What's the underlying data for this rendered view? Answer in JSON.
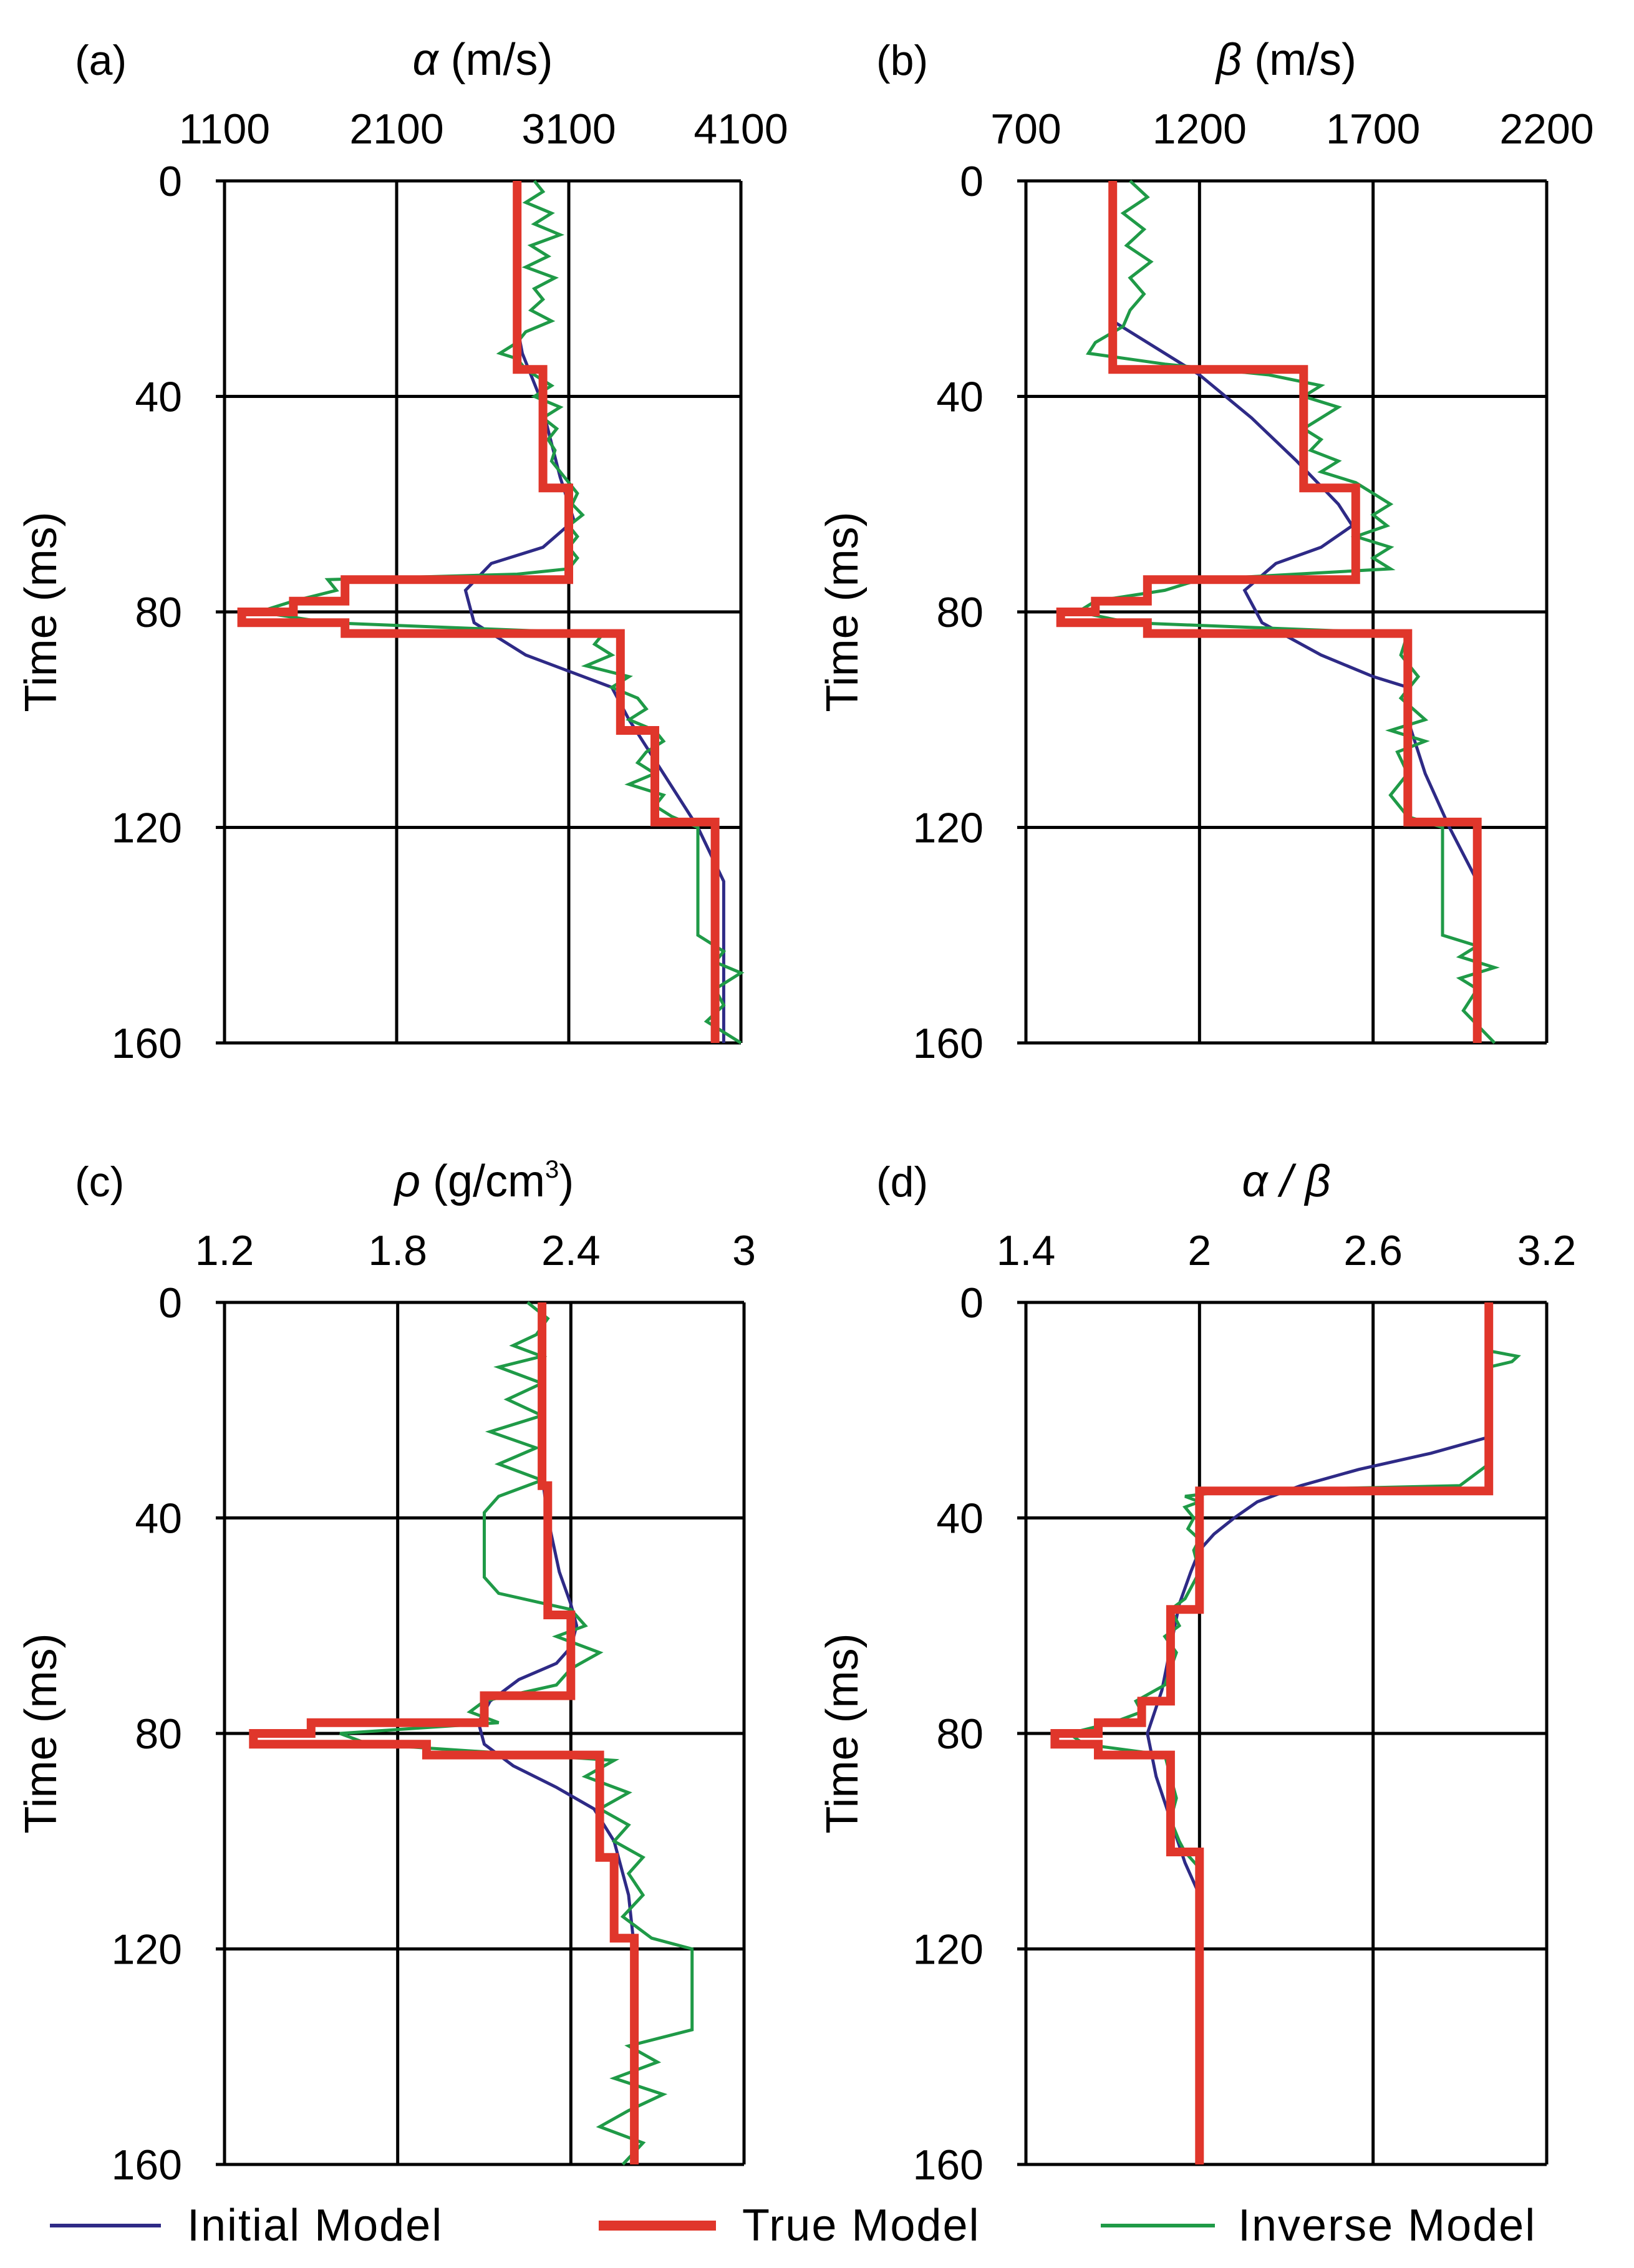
{
  "figure": {
    "legend": {
      "initial": "Initial Model",
      "true": "True Model",
      "inverse": "Inverse Model"
    },
    "colors": {
      "initial": "#2e2a86",
      "true": "#e0362b",
      "inverse": "#1f9a47",
      "axis": "#000000"
    }
  },
  "chart_data": [
    {
      "id": "a",
      "type": "line",
      "panel_label": "(a)",
      "title_symbol": "α",
      "title_rest": " (m/s)",
      "ylabel": "Time (ms)",
      "xlim": [
        1100,
        4100
      ],
      "xticks": [
        1100,
        2100,
        3100,
        4100
      ],
      "xtick_labels": [
        "1100",
        "2100",
        "3100",
        "4100"
      ],
      "ylim": [
        0,
        160
      ],
      "yticks": [
        0,
        40,
        80,
        120,
        160
      ],
      "ytick_labels": [
        "0",
        "40",
        "80",
        "120",
        "160"
      ],
      "series": [
        {
          "name": "Initial Model",
          "key": "initial",
          "t": [
            0,
            27,
            32,
            40,
            55,
            63,
            68,
            71,
            76,
            82,
            88,
            94,
            100,
            110,
            120,
            130,
            160
          ],
          "v": [
            2800,
            2800,
            2830,
            2930,
            3050,
            3130,
            2950,
            2650,
            2500,
            2550,
            2850,
            3350,
            3450,
            3650,
            3850,
            4000,
            4000
          ]
        },
        {
          "name": "True Model",
          "key": "true",
          "t": [
            0,
            35,
            35,
            57,
            57,
            74,
            74,
            78,
            78,
            80,
            80,
            82,
            82,
            84,
            84,
            102,
            102,
            119,
            119,
            160
          ],
          "v": [
            2800,
            2800,
            2950,
            2950,
            3100,
            3100,
            1800,
            1800,
            1500,
            1500,
            1200,
            1200,
            1800,
            1800,
            3400,
            3400,
            3600,
            3600,
            3950,
            3950
          ]
        },
        {
          "name": "Inverse Model",
          "key": "inverse",
          "t": [
            0,
            2,
            4,
            6,
            8,
            10,
            12,
            14,
            16,
            18,
            20,
            22,
            24,
            26,
            28,
            30,
            31,
            32,
            33,
            35,
            38,
            40,
            42,
            44,
            46,
            48,
            50,
            52,
            54,
            56,
            58,
            60,
            62,
            64,
            66,
            68,
            70,
            72,
            73,
            74,
            76,
            78,
            80,
            82,
            84,
            86,
            88,
            90,
            92,
            94,
            96,
            98,
            100,
            102,
            104,
            106,
            108,
            110,
            112,
            114,
            116,
            118,
            120,
            130,
            140,
            143,
            145,
            147,
            150,
            153,
            156,
            158,
            160
          ],
          "v": [
            2900,
            2950,
            2850,
            3000,
            2900,
            3050,
            2880,
            2980,
            2850,
            3020,
            2900,
            2950,
            2880,
            3000,
            2850,
            2800,
            2750,
            2700,
            2800,
            2850,
            3000,
            2900,
            3050,
            2950,
            3030,
            2980,
            3020,
            3000,
            3050,
            3100,
            3150,
            3120,
            3180,
            3100,
            3150,
            3100,
            3150,
            3100,
            2800,
            1700,
            1750,
            1500,
            1300,
            1700,
            3300,
            3250,
            3350,
            3200,
            3450,
            3350,
            3500,
            3550,
            3450,
            3600,
            3650,
            3550,
            3500,
            3600,
            3450,
            3650,
            3600,
            3700,
            3850,
            3850,
            3850,
            4000,
            3950,
            4100,
            3950,
            4000,
            3900,
            4000,
            4100
          ]
        }
      ]
    },
    {
      "id": "b",
      "type": "line",
      "panel_label": "(b)",
      "title_symbol": "β",
      "title_rest": " (m/s)",
      "ylabel": "Time (ms)",
      "xlim": [
        700,
        2200
      ],
      "xticks": [
        700,
        1200,
        1700,
        2200
      ],
      "xtick_labels": [
        "700",
        "1200",
        "1700",
        "2200"
      ],
      "ylim": [
        0,
        160
      ],
      "yticks": [
        0,
        40,
        80,
        120,
        160
      ],
      "ytick_labels": [
        "0",
        "40",
        "80",
        "120",
        "160"
      ],
      "series": [
        {
          "name": "Initial Model",
          "key": "initial",
          "t": [
            0,
            26,
            30,
            36,
            44,
            52,
            60,
            64,
            68,
            71,
            76,
            82,
            88,
            92,
            94,
            100,
            110,
            120,
            130,
            160
          ],
          "v": [
            950,
            950,
            1050,
            1200,
            1350,
            1480,
            1600,
            1640,
            1550,
            1420,
            1330,
            1380,
            1550,
            1700,
            1800,
            1800,
            1850,
            1920,
            2000,
            2000
          ]
        },
        {
          "name": "True Model",
          "key": "true",
          "t": [
            0,
            35,
            35,
            57,
            57,
            74,
            74,
            78,
            78,
            80,
            80,
            82,
            82,
            84,
            84,
            119,
            119,
            160
          ],
          "v": [
            950,
            950,
            1500,
            1500,
            1650,
            1650,
            1050,
            1050,
            900,
            900,
            800,
            800,
            1050,
            1050,
            1800,
            1800,
            2000,
            2000
          ]
        },
        {
          "name": "Inverse Model",
          "key": "inverse",
          "t": [
            0,
            3,
            6,
            9,
            12,
            15,
            18,
            21,
            24,
            27,
            30,
            32,
            34,
            36,
            38,
            40,
            42,
            44,
            46,
            48,
            50,
            52,
            54,
            56,
            58,
            60,
            62,
            64,
            66,
            68,
            70,
            72,
            74,
            76,
            78,
            80,
            82,
            84,
            88,
            92,
            96,
            100,
            102,
            104,
            106,
            110,
            114,
            118,
            120,
            140,
            142,
            144,
            146,
            148,
            150,
            154,
            158,
            160
          ],
          "v": [
            1000,
            1050,
            980,
            1040,
            990,
            1060,
            1000,
            1040,
            1000,
            980,
            900,
            880,
            1100,
            1400,
            1550,
            1500,
            1600,
            1550,
            1500,
            1550,
            1520,
            1600,
            1550,
            1650,
            1700,
            1750,
            1700,
            1740,
            1650,
            1750,
            1700,
            1750,
            1200,
            1100,
            900,
            850,
            1000,
            1800,
            1780,
            1830,
            1780,
            1850,
            1750,
            1850,
            1770,
            1800,
            1750,
            1800,
            1900,
            1900,
            2000,
            1950,
            2050,
            1950,
            2000,
            1960,
            2020,
            2050
          ]
        }
      ]
    },
    {
      "id": "c",
      "type": "line",
      "panel_label": "(c)",
      "title_symbol": "ρ",
      "title_rest": " (g/cm",
      "title_sup": "3",
      "title_end": ")",
      "ylabel": "Time (ms)",
      "xlim": [
        1.2,
        3.0
      ],
      "xticks": [
        1.2,
        1.8,
        2.4,
        3.0
      ],
      "xtick_labels": [
        "1.2",
        "1.8",
        "2.4",
        "3"
      ],
      "ylim": [
        0,
        160
      ],
      "yticks": [
        0,
        40,
        80,
        120,
        160
      ],
      "ytick_labels": [
        "0",
        "40",
        "80",
        "120",
        "160"
      ],
      "series": [
        {
          "name": "Initial Model",
          "key": "initial",
          "t": [
            0,
            32,
            40,
            50,
            56,
            60,
            64,
            67,
            70,
            74,
            78,
            82,
            86,
            90,
            94,
            100,
            110,
            120,
            130,
            160
          ],
          "v": [
            2.3,
            2.3,
            2.32,
            2.36,
            2.4,
            2.42,
            2.4,
            2.35,
            2.22,
            2.12,
            2.08,
            2.1,
            2.2,
            2.35,
            2.48,
            2.55,
            2.6,
            2.62,
            2.62,
            2.62
          ]
        },
        {
          "name": "True Model",
          "key": "true",
          "t": [
            0,
            34,
            34,
            58,
            58,
            73,
            73,
            78,
            78,
            80,
            80,
            82,
            82,
            84,
            84,
            103,
            103,
            118,
            118,
            160
          ],
          "v": [
            2.3,
            2.3,
            2.32,
            2.32,
            2.4,
            2.4,
            2.1,
            2.1,
            1.5,
            1.5,
            1.3,
            1.3,
            1.9,
            1.9,
            2.5,
            2.5,
            2.55,
            2.55,
            2.62,
            2.62
          ]
        },
        {
          "name": "Inverse Model",
          "key": "inverse",
          "t": [
            0,
            3,
            6,
            8,
            10,
            12,
            15,
            18,
            21,
            24,
            27,
            30,
            33,
            36,
            39,
            42,
            45,
            48,
            51,
            54,
            57,
            60,
            62,
            65,
            68,
            71,
            74,
            76,
            78,
            80,
            82,
            85,
            88,
            91,
            94,
            97,
            100,
            103,
            106,
            110,
            114,
            118,
            120,
            135,
            138,
            141,
            144,
            147,
            150,
            153,
            156,
            160
          ],
          "v": [
            2.25,
            2.32,
            2.28,
            2.2,
            2.3,
            2.15,
            2.3,
            2.18,
            2.3,
            2.12,
            2.28,
            2.15,
            2.3,
            2.15,
            2.1,
            2.1,
            2.1,
            2.1,
            2.1,
            2.15,
            2.4,
            2.45,
            2.35,
            2.5,
            2.4,
            2.35,
            2.1,
            2.05,
            2.15,
            1.6,
            1.7,
            2.55,
            2.45,
            2.6,
            2.5,
            2.6,
            2.55,
            2.65,
            2.6,
            2.65,
            2.58,
            2.68,
            2.82,
            2.82,
            2.6,
            2.7,
            2.55,
            2.72,
            2.6,
            2.5,
            2.65,
            2.58
          ]
        }
      ]
    },
    {
      "id": "d",
      "type": "line",
      "panel_label": "(d)",
      "title_symbol": "α / β",
      "title_rest": "",
      "ylabel": "Time (ms)",
      "xlim": [
        1.4,
        3.2
      ],
      "xticks": [
        1.4,
        2.0,
        2.6,
        3.2
      ],
      "xtick_labels": [
        "1.4",
        "2",
        "2.6",
        "3.2"
      ],
      "ylim": [
        0,
        160
      ],
      "yticks": [
        0,
        40,
        80,
        120,
        160
      ],
      "ytick_labels": [
        "0",
        "40",
        "80",
        "120",
        "160"
      ],
      "series": [
        {
          "name": "Initial Model",
          "key": "initial",
          "t": [
            0,
            25,
            28,
            31,
            34,
            37,
            40,
            43,
            46,
            50,
            56,
            64,
            72,
            80,
            88,
            96,
            104,
            110,
            160
          ],
          "v": [
            3.0,
            3.0,
            2.8,
            2.55,
            2.35,
            2.2,
            2.12,
            2.05,
            2.0,
            1.97,
            1.93,
            1.9,
            1.87,
            1.82,
            1.85,
            1.9,
            1.95,
            2.0,
            2.0
          ]
        },
        {
          "name": "True Model",
          "key": "true",
          "t": [
            0,
            35,
            35,
            57,
            57,
            74,
            74,
            78,
            78,
            80,
            80,
            82,
            82,
            84,
            84,
            102,
            102,
            160
          ],
          "v": [
            3.0,
            3.0,
            2.0,
            2.0,
            1.9,
            1.9,
            1.8,
            1.8,
            1.65,
            1.65,
            1.5,
            1.5,
            1.65,
            1.65,
            1.9,
            1.9,
            2.0,
            2.0
          ]
        },
        {
          "name": "Inverse Model",
          "key": "inverse",
          "t": [
            0,
            9,
            10,
            11,
            12,
            13,
            30,
            34,
            35,
            36,
            37,
            38,
            40,
            42,
            44,
            46,
            50,
            55,
            57,
            60,
            62,
            65,
            68,
            71,
            74,
            76,
            78,
            80,
            82,
            84,
            88,
            92,
            96,
            100,
            102,
            105,
            160
          ],
          "v": [
            3.0,
            3.0,
            3.1,
            3.08,
            3.0,
            3.0,
            3.0,
            2.9,
            2.1,
            1.95,
            2.0,
            1.95,
            1.98,
            1.96,
            2.0,
            1.98,
            2.0,
            1.95,
            1.9,
            1.93,
            1.88,
            1.92,
            1.9,
            1.88,
            1.78,
            1.8,
            1.7,
            1.55,
            1.6,
            1.88,
            1.9,
            1.92,
            1.9,
            1.93,
            1.95,
            2.0,
            2.0
          ]
        }
      ]
    }
  ]
}
